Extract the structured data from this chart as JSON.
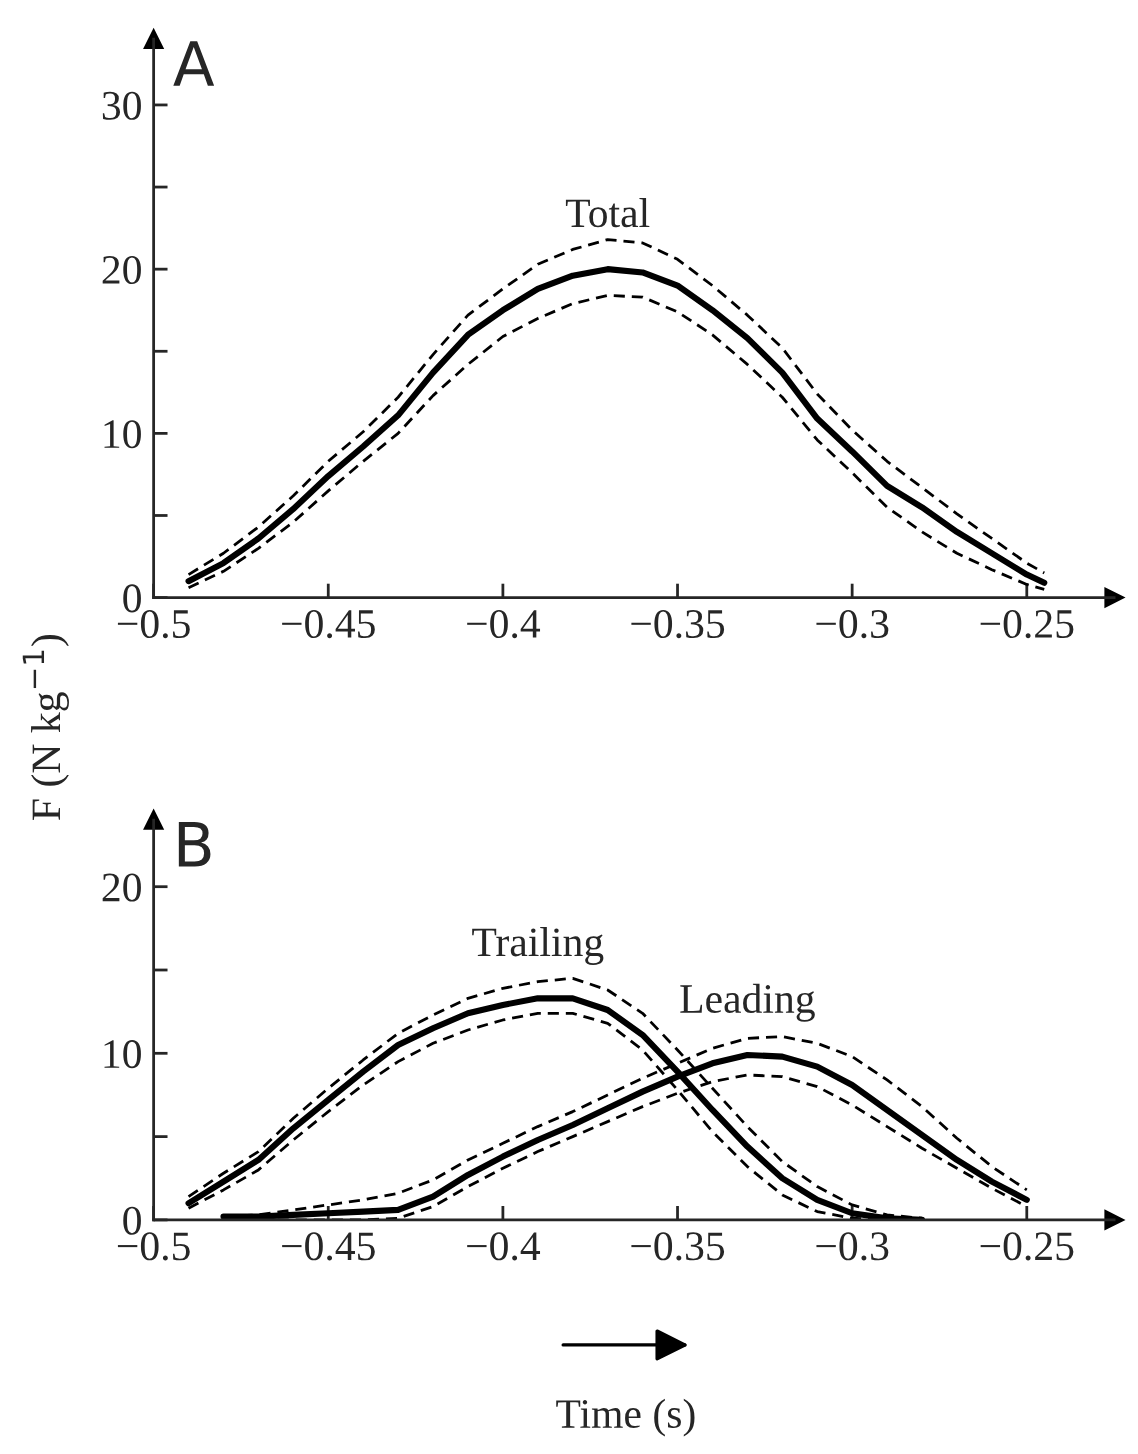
{
  "chart_data": [
    {
      "type": "line",
      "ylabel": "F (N kg$^{−1}$)",
      "annotations": [
        "A"
      ],
      "grid": false,
      "legend": false,
      "line_style": "solid",
      "marker": "none",
      "xlim": [
        -0.5,
        -0.225
      ],
      "ylim": [
        0,
        34
      ],
      "xticks": [
        {
          "value": -0.5,
          "label": "−0.5"
        },
        {
          "value": -0.45,
          "label": "−0.45"
        },
        {
          "value": -0.4,
          "label": "−0.4"
        },
        {
          "value": -0.35,
          "label": "−0.35"
        },
        {
          "value": -0.3,
          "label": "−0.3"
        },
        {
          "value": -0.25,
          "label": "−0.25"
        }
      ],
      "yticks": [
        0,
        {
          "value": 5,
          "label": null
        },
        10,
        {
          "value": 15,
          "label": null
        },
        20,
        {
          "value": 25,
          "label": null
        },
        30
      ],
      "x": [
        -0.49,
        -0.48,
        -0.47,
        -0.46,
        -0.45,
        -0.44,
        -0.43,
        -0.42,
        -0.41,
        -0.4,
        -0.39,
        -0.38,
        -0.37,
        -0.36,
        -0.35,
        -0.34,
        -0.33,
        -0.32,
        -0.31,
        -0.3,
        -0.29,
        -0.28,
        -0.27,
        -0.26,
        -0.25,
        -0.245
      ],
      "series": [
        {
          "name": "Total",
          "color": "#000000",
          "values": [
            1.0,
            2.1,
            3.6,
            5.4,
            7.4,
            9.2,
            11.1,
            13.7,
            16.0,
            17.5,
            18.8,
            19.6,
            20.0,
            19.8,
            19.0,
            17.5,
            15.8,
            13.7,
            10.9,
            8.9,
            6.8,
            5.5,
            4.0,
            2.7,
            1.4,
            0.9
          ]
        },
        {
          "color": "#000000",
          "line_style": "dashed",
          "values": [
            0.6,
            1.6,
            3.0,
            4.6,
            6.5,
            8.3,
            10.0,
            12.3,
            14.2,
            15.9,
            17.0,
            17.9,
            18.4,
            18.3,
            17.4,
            16.0,
            14.2,
            12.2,
            9.6,
            7.6,
            5.5,
            4.0,
            2.7,
            1.7,
            0.8,
            0.5
          ]
        },
        {
          "color": "#000000",
          "line_style": "dashed",
          "values": [
            1.4,
            2.7,
            4.3,
            6.2,
            8.3,
            10.1,
            12.2,
            14.8,
            17.2,
            18.8,
            20.3,
            21.2,
            21.8,
            21.6,
            20.6,
            19.0,
            17.2,
            15.2,
            12.4,
            10.2,
            8.3,
            6.7,
            5.1,
            3.6,
            2.1,
            1.5
          ]
        }
      ]
    },
    {
      "type": "line",
      "xlabel": "Time (s)",
      "annotations": [
        "B"
      ],
      "grid": false,
      "legend": false,
      "line_style": "solid",
      "marker": "none",
      "xlim": [
        -0.5,
        -0.225
      ],
      "ylim": [
        0,
        24
      ],
      "xticks": [
        {
          "value": -0.5,
          "label": "−0.5"
        },
        {
          "value": -0.45,
          "label": "−0.45"
        },
        {
          "value": -0.4,
          "label": "−0.4"
        },
        {
          "value": -0.35,
          "label": "−0.35"
        },
        {
          "value": -0.3,
          "label": "−0.3"
        },
        {
          "value": -0.25,
          "label": "−0.25"
        }
      ],
      "yticks": [
        0,
        {
          "value": 5,
          "label": null
        },
        10,
        {
          "value": 15,
          "label": null
        },
        20
      ],
      "series": [
        {
          "name": "Trailing",
          "color": "#000000",
          "x": [
            -0.49,
            -0.48,
            -0.47,
            -0.46,
            -0.45,
            -0.44,
            -0.43,
            -0.42,
            -0.41,
            -0.4,
            -0.39,
            -0.38,
            -0.37,
            -0.36,
            -0.35,
            -0.34,
            -0.33,
            -0.32,
            -0.31,
            -0.3,
            -0.29,
            -0.28
          ],
          "values": [
            1.0,
            2.3,
            3.6,
            5.5,
            7.2,
            8.9,
            10.5,
            11.5,
            12.4,
            12.9,
            13.3,
            13.3,
            12.6,
            11.1,
            8.9,
            6.6,
            4.4,
            2.5,
            1.2,
            0.4,
            0.1,
            0
          ]
        },
        {
          "color": "#000000",
          "line_style": "dashed",
          "x": [
            -0.49,
            -0.48,
            -0.47,
            -0.46,
            -0.45,
            -0.44,
            -0.43,
            -0.42,
            -0.41,
            -0.4,
            -0.39,
            -0.38,
            -0.37,
            -0.36,
            -0.35,
            -0.34,
            -0.33,
            -0.32,
            -0.31,
            -0.3,
            -0.29,
            -0.28
          ],
          "values": [
            0.7,
            1.8,
            3.0,
            4.8,
            6.5,
            8.1,
            9.5,
            10.6,
            11.4,
            12.0,
            12.4,
            12.4,
            11.8,
            10.2,
            7.8,
            5.3,
            3.2,
            1.5,
            0.5,
            0.1,
            0,
            0
          ]
        },
        {
          "color": "#000000",
          "line_style": "dashed",
          "x": [
            -0.49,
            -0.48,
            -0.47,
            -0.46,
            -0.45,
            -0.44,
            -0.43,
            -0.42,
            -0.41,
            -0.4,
            -0.39,
            -0.38,
            -0.37,
            -0.36,
            -0.35,
            -0.34,
            -0.33,
            -0.32,
            -0.31,
            -0.3,
            -0.29,
            -0.28
          ],
          "values": [
            1.4,
            2.8,
            4.1,
            6.1,
            7.9,
            9.6,
            11.2,
            12.3,
            13.3,
            13.9,
            14.3,
            14.5,
            13.8,
            12.4,
            10.2,
            7.9,
            5.6,
            3.5,
            2.0,
            0.9,
            0.3,
            0.1
          ]
        },
        {
          "name": "Leading",
          "color": "#000000",
          "x": [
            -0.48,
            -0.47,
            -0.46,
            -0.45,
            -0.44,
            -0.43,
            -0.42,
            -0.41,
            -0.4,
            -0.39,
            -0.38,
            -0.37,
            -0.36,
            -0.35,
            -0.34,
            -0.33,
            -0.32,
            -0.31,
            -0.3,
            -0.29,
            -0.28,
            -0.27,
            -0.26,
            -0.25
          ],
          "values": [
            0.2,
            0.2,
            0.3,
            0.4,
            0.5,
            0.6,
            1.4,
            2.7,
            3.8,
            4.8,
            5.7,
            6.7,
            7.7,
            8.6,
            9.4,
            9.9,
            9.8,
            9.2,
            8.1,
            6.6,
            5.1,
            3.6,
            2.3,
            1.2
          ]
        },
        {
          "color": "#000000",
          "line_style": "dashed",
          "x": [
            -0.48,
            -0.47,
            -0.46,
            -0.45,
            -0.44,
            -0.43,
            -0.42,
            -0.41,
            -0.4,
            -0.39,
            -0.38,
            -0.37,
            -0.36,
            -0.35,
            -0.34,
            -0.33,
            -0.32,
            -0.31,
            -0.3,
            -0.29,
            -0.28,
            -0.27,
            -0.26,
            -0.25
          ],
          "values": [
            0,
            0,
            0,
            0,
            0,
            0.1,
            0.8,
            2.0,
            3.1,
            4.1,
            5.0,
            5.9,
            6.8,
            7.6,
            8.3,
            8.7,
            8.6,
            8.0,
            6.9,
            5.6,
            4.3,
            3.1,
            1.9,
            0.8
          ]
        },
        {
          "color": "#000000",
          "line_style": "dashed",
          "x": [
            -0.48,
            -0.47,
            -0.46,
            -0.45,
            -0.44,
            -0.43,
            -0.42,
            -0.41,
            -0.4,
            -0.39,
            -0.38,
            -0.37,
            -0.36,
            -0.35,
            -0.34,
            -0.33,
            -0.32,
            -0.31,
            -0.3,
            -0.29,
            -0.28,
            -0.27,
            -0.26,
            -0.25
          ],
          "values": [
            0.2,
            0.3,
            0.6,
            0.9,
            1.2,
            1.6,
            2.4,
            3.6,
            4.6,
            5.6,
            6.5,
            7.5,
            8.5,
            9.4,
            10.3,
            10.9,
            11.0,
            10.6,
            9.8,
            8.4,
            6.8,
            4.9,
            3.2,
            1.8
          ]
        }
      ]
    }
  ]
}
